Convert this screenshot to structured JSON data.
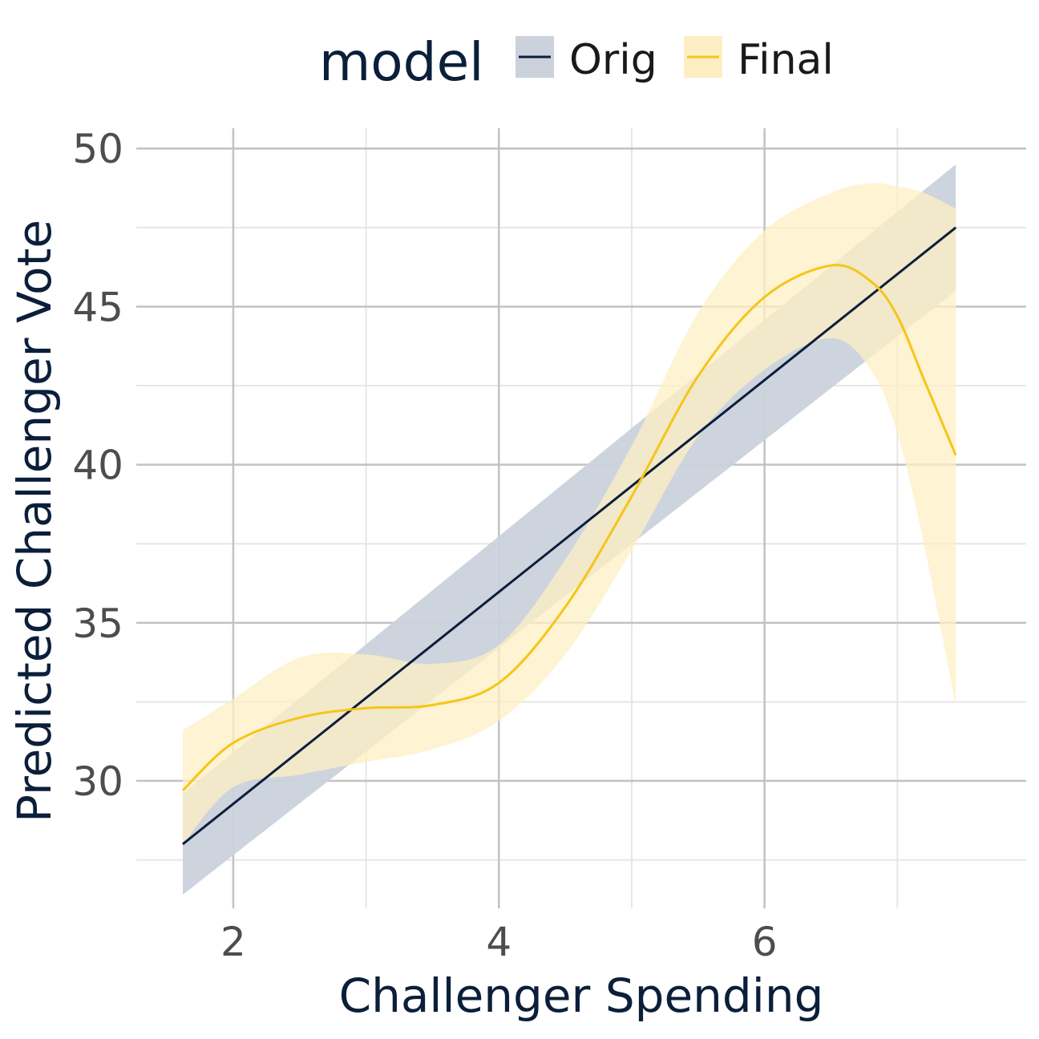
{
  "chart_data": {
    "type": "line",
    "title": "",
    "xlabel": "Challenger Spending",
    "ylabel": "Predicted Challenger Vote",
    "xlim": [
      1.27,
      7.97
    ],
    "ylim": [
      25.97,
      50.64
    ],
    "x_ticks": [
      2,
      4,
      6
    ],
    "x_tick_labels": [
      "2",
      "4",
      "6"
    ],
    "y_ticks": [
      30,
      35,
      40,
      45,
      50
    ],
    "y_tick_labels": [
      "30",
      "35",
      "40",
      "45",
      "50"
    ],
    "grid": true,
    "legend": {
      "title": "model",
      "position": "top",
      "entries": [
        "Orig",
        "Final"
      ]
    },
    "series": [
      {
        "name": "Orig",
        "color": "#0b1f3a",
        "band_color": "#cbd2dc",
        "x": [
          1.62,
          7.44
        ],
        "y": [
          28.0,
          47.5
        ],
        "lower": [
          26.4,
          45.5
        ],
        "upper": [
          29.6,
          49.5
        ]
      },
      {
        "name": "Final",
        "color": "#f5c518",
        "band_color": "#fdefc3",
        "x": [
          1.62,
          2.0,
          2.5,
          3.0,
          3.5,
          4.0,
          4.5,
          5.0,
          5.5,
          6.0,
          6.5,
          6.8,
          7.0,
          7.2,
          7.44
        ],
        "y": [
          29.7,
          31.2,
          32.0,
          32.3,
          32.4,
          33.1,
          35.5,
          39.0,
          42.8,
          45.3,
          46.3,
          45.8,
          44.7,
          42.7,
          40.3
        ],
        "lower": [
          28.0,
          29.8,
          30.2,
          30.6,
          31.0,
          31.9,
          34.0,
          37.3,
          40.9,
          43.0,
          44.0,
          43.0,
          41.0,
          37.5,
          32.4
        ],
        "upper": [
          31.6,
          32.6,
          33.9,
          34.0,
          33.7,
          34.3,
          37.0,
          40.6,
          44.8,
          47.4,
          48.6,
          48.9,
          48.8,
          48.6,
          48.1
        ]
      }
    ]
  }
}
